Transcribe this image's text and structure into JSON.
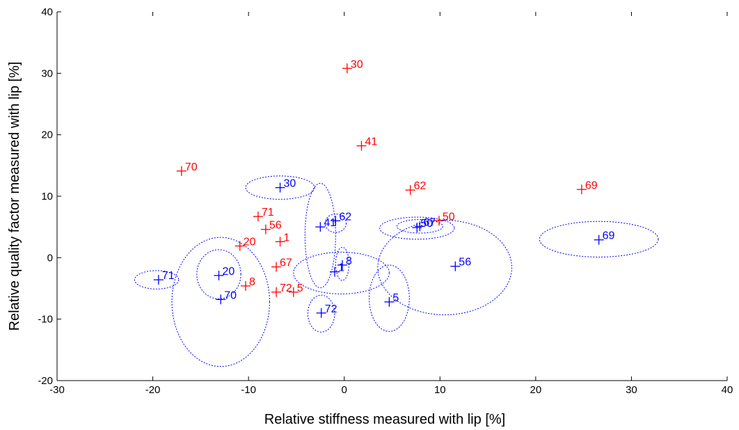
{
  "chart_data": {
    "type": "scatter",
    "xlabel": "Relative stiffness measured with lip [%]",
    "ylabel": "Relative quality factor measured with lip [%]",
    "xlim": [
      -30,
      40
    ],
    "ylim": [
      -20,
      40
    ],
    "xticks": [
      "-30",
      "-20",
      "-10",
      "0",
      "10",
      "20",
      "30",
      "40"
    ],
    "yticks": [
      "-20",
      "-10",
      "0",
      "10",
      "20",
      "30",
      "40"
    ],
    "xtick_values": [
      -30,
      -20,
      -10,
      0,
      10,
      20,
      30,
      40
    ],
    "ytick_values": [
      -20,
      -10,
      0,
      10,
      20,
      30,
      40
    ],
    "grid": false,
    "series": [
      {
        "color": "#ff0000",
        "marker": "plus",
        "points": [
          {
            "label": "30",
            "x": 0.3,
            "y": 30.8
          },
          {
            "label": "41",
            "x": 1.8,
            "y": 18.2
          },
          {
            "label": "70",
            "x": -17.0,
            "y": 14.1
          },
          {
            "label": "62",
            "x": 6.9,
            "y": 11.0
          },
          {
            "label": "69",
            "x": 24.8,
            "y": 11.1
          },
          {
            "label": "50",
            "x": 9.9,
            "y": 6.0
          },
          {
            "label": "71",
            "x": -9.0,
            "y": 6.7
          },
          {
            "label": "56",
            "x": -8.2,
            "y": 4.6
          },
          {
            "label": "1",
            "x": -6.7,
            "y": 2.6
          },
          {
            "label": "20",
            "x": -10.9,
            "y": 1.9
          },
          {
            "label": "67",
            "x": -7.1,
            "y": -1.5
          },
          {
            "label": "8",
            "x": -10.3,
            "y": -4.6
          },
          {
            "label": "72",
            "x": -7.1,
            "y": -5.6
          },
          {
            "label": "5",
            "x": -5.3,
            "y": -5.6
          }
        ]
      },
      {
        "color": "#0000ff",
        "marker": "plus",
        "points": [
          {
            "label": "30",
            "x": -6.7,
            "y": 11.4,
            "ellipse": {
              "rx": 3.6,
              "ry": 1.9
            }
          },
          {
            "label": "41",
            "x": -2.5,
            "y": 5.0,
            "ellipse": {
              "rx": 1.6,
              "ry": 8.5,
              "cy": 3.6
            }
          },
          {
            "label": "62",
            "x": -0.9,
            "y": 6.0,
            "ellipse": {
              "rx": 1.1,
              "ry": 1.5,
              "cy": 5.6
            }
          },
          {
            "label": "50",
            "x": 7.6,
            "y": 4.9,
            "ellipse": {
              "rx": 3.9,
              "ry": 1.8,
              "cy": 4.8
            }
          },
          {
            "label": "67",
            "x": 7.9,
            "y": 5.1,
            "ellipse": {
              "rx": 2.4,
              "ry": 1.1
            }
          },
          {
            "label": "69",
            "x": 26.6,
            "y": 2.9,
            "ellipse": {
              "rx": 6.2,
              "ry": 2.9,
              "cy": 3.0
            }
          },
          {
            "label": "56",
            "x": 11.6,
            "y": -1.4,
            "ellipse": {
              "rx": 7.0,
              "ry": 7.7,
              "cx": 10.5,
              "cy": -1.6
            }
          },
          {
            "label": "8",
            "x": -0.2,
            "y": -1.2,
            "ellipse": {
              "rx": 0.7,
              "ry": 2.7,
              "cy": -1.0
            }
          },
          {
            "label": "1",
            "x": -1.0,
            "y": -2.3,
            "ellipse": {
              "rx": 5.0,
              "ry": 3.4,
              "cx": -0.3,
              "cy": -2.5
            }
          },
          {
            "label": "20",
            "x": -13.1,
            "y": -2.9,
            "ellipse": {
              "rx": 2.3,
              "ry": 4.0,
              "cy": -2.7
            }
          },
          {
            "label": "71",
            "x": -19.4,
            "y": -3.6,
            "ellipse": {
              "rx": 2.3,
              "ry": 1.5,
              "cx": -19.6
            }
          },
          {
            "label": "70",
            "x": -12.9,
            "y": -6.8,
            "ellipse": {
              "rx": 5.1,
              "ry": 10.5,
              "cx": -12.9,
              "cy": -7.2
            }
          },
          {
            "label": "5",
            "x": 4.7,
            "y": -7.2,
            "ellipse": {
              "rx": 2.1,
              "ry": 5.4,
              "cx": 4.7,
              "cy": -6.6
            }
          },
          {
            "label": "72",
            "x": -2.4,
            "y": -9.0,
            "ellipse": {
              "rx": 1.4,
              "ry": 3.0,
              "cy": -9.1
            }
          }
        ]
      }
    ]
  }
}
